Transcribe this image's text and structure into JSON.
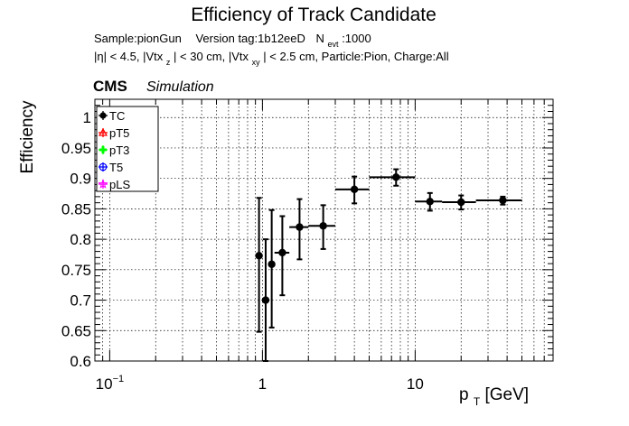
{
  "chart_data": {
    "type": "scatter",
    "title": "Efficiency of Track Candidate",
    "subtitle": {
      "line1_sample": "Sample:pionGun",
      "line1_version": "Version tag:1b12eeD",
      "line1_n": "N",
      "line1_n_sub": "evt",
      "line1_n_value": ":1000",
      "line2_a": "|η| < 4.5, |Vtx",
      "line2_sub_z": "z",
      "line2_b": "| < 30 cm, |Vtx",
      "line2_sub_xy": "xy",
      "line2_c": "| < 2.5 cm, Particle:Pion, Charge:All"
    },
    "cms_label": "CMS",
    "simulation_label": "Simulation",
    "ylabel": "Efficiency",
    "xlabel_main": "p",
    "xlabel_sub": "T",
    "xlabel_unit": " [GeV]",
    "x_scale": "log",
    "xlim": [
      0.08,
      80
    ],
    "ylim": [
      0.6,
      1.03
    ],
    "yticks": [
      {
        "value": 0.6,
        "label": "0.6"
      },
      {
        "value": 0.65,
        "label": "0.65"
      },
      {
        "value": 0.7,
        "label": "0.7"
      },
      {
        "value": 0.75,
        "label": "0.75"
      },
      {
        "value": 0.8,
        "label": "0.8"
      },
      {
        "value": 0.85,
        "label": "0.85"
      },
      {
        "value": 0.9,
        "label": "0.9"
      },
      {
        "value": 0.95,
        "label": "0.95"
      },
      {
        "value": 1.0,
        "label": "1"
      }
    ],
    "xticks": [
      {
        "value": 0.1,
        "label": "10",
        "sup": "−1"
      },
      {
        "value": 1,
        "label": "1",
        "sup": ""
      },
      {
        "value": 10,
        "label": "10",
        "sup": ""
      }
    ],
    "grid": true,
    "legend_position": "top-left",
    "legend": [
      {
        "label": "TC",
        "color": "#000000",
        "marker": "filled-circle"
      },
      {
        "label": "pT5",
        "color": "#ff0000",
        "marker": "open-triangle"
      },
      {
        "label": "pT3",
        "color": "#00ff00",
        "marker": "filled-cross"
      },
      {
        "label": "T5",
        "color": "#0000ff",
        "marker": "open-circle"
      },
      {
        "label": "pLS",
        "color": "#ff00ff",
        "marker": "open-star"
      }
    ],
    "series": [
      {
        "name": "TC",
        "color": "#000000",
        "points": [
          {
            "x": 0.95,
            "xlo": 0.9,
            "xhi": 1.0,
            "y": 0.773,
            "ylo": 0.648,
            "yhi": 0.868
          },
          {
            "x": 1.05,
            "xlo": 1.0,
            "xhi": 1.1,
            "y": 0.7,
            "ylo": 0.6,
            "yhi": 0.8
          },
          {
            "x": 1.15,
            "xlo": 1.1,
            "xhi": 1.2,
            "y": 0.759,
            "ylo": 0.655,
            "yhi": 0.848
          },
          {
            "x": 1.35,
            "xlo": 1.2,
            "xhi": 1.5,
            "y": 0.778,
            "ylo": 0.708,
            "yhi": 0.838
          },
          {
            "x": 1.75,
            "xlo": 1.5,
            "xhi": 2.0,
            "y": 0.82,
            "ylo": 0.767,
            "yhi": 0.866
          },
          {
            "x": 2.5,
            "xlo": 2.0,
            "xhi": 3.0,
            "y": 0.822,
            "ylo": 0.784,
            "yhi": 0.856
          },
          {
            "x": 4.0,
            "xlo": 3.0,
            "xhi": 5.0,
            "y": 0.882,
            "ylo": 0.859,
            "yhi": 0.903
          },
          {
            "x": 7.5,
            "xlo": 5.0,
            "xhi": 10.0,
            "y": 0.902,
            "ylo": 0.888,
            "yhi": 0.915
          },
          {
            "x": 12.5,
            "xlo": 10.0,
            "xhi": 15.0,
            "y": 0.862,
            "ylo": 0.847,
            "yhi": 0.876
          },
          {
            "x": 20.0,
            "xlo": 15.0,
            "xhi": 25.0,
            "y": 0.861,
            "ylo": 0.849,
            "yhi": 0.872
          },
          {
            "x": 37.5,
            "xlo": 25.0,
            "xhi": 50.0,
            "y": 0.864,
            "ylo": 0.857,
            "yhi": 0.87
          }
        ]
      }
    ]
  }
}
